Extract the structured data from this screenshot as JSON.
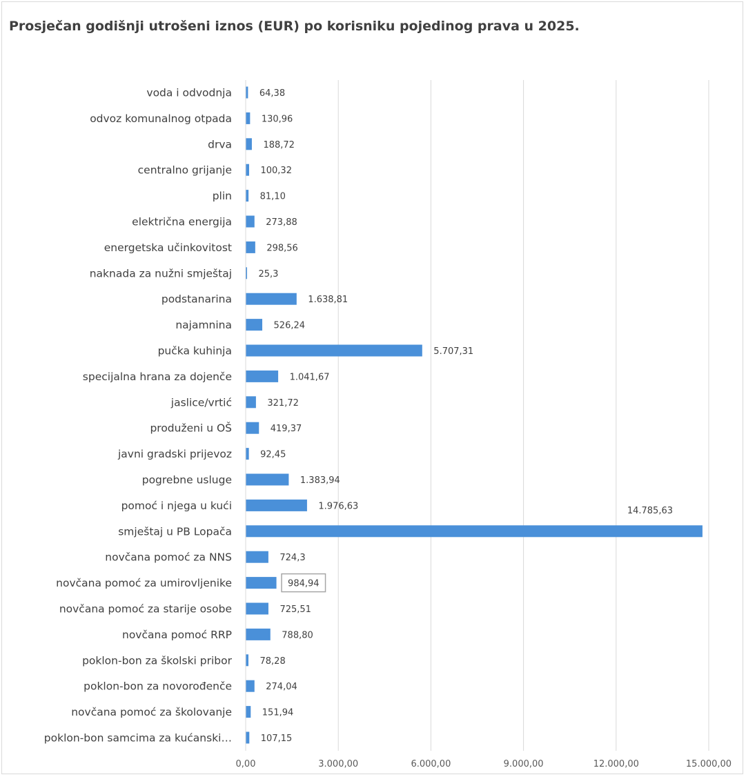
{
  "chart_data": {
    "type": "bar",
    "orientation": "horizontal",
    "title": "Prosječan godišnji utrošeni iznos (EUR) po korisniku pojedinog prava u 2025.",
    "xlabel": "",
    "ylabel": "",
    "xlim": [
      0,
      15000
    ],
    "grid": true,
    "legend": "none",
    "bar_color": "#4a90d9",
    "x_ticks": [
      "0,00",
      "3.000,00",
      "6.000,00",
      "9.000,00",
      "12.000,00",
      "15.000,00"
    ],
    "categories": [
      "voda i odvodnja",
      "odvoz komunalnog otpada",
      "drva",
      "centralno grijanje",
      "plin",
      "električna energija",
      "energetska učinkovitost",
      "naknada za nužni smještaj",
      "podstanarina",
      "najamnina",
      "pučka kuhinja",
      "specijalna hrana za dojenče",
      "jaslice/vrtić",
      "produženi u OŠ",
      "javni gradski prijevoz",
      "pogrebne usluge",
      "pomoć i njega u kući",
      "smještaj u PB Lopača",
      "novčana pomoć za NNS",
      "novčana pomoć za umirovljenike",
      "novčana pomoć za starije osobe",
      "novčana pomoć RRP",
      "poklon-bon za školski pribor",
      "poklon-bon za novorođenče",
      "novčana pomoć za školovanje",
      "poklon-bon samcima za kućanski…"
    ],
    "values": [
      64.38,
      130.96,
      188.72,
      100.32,
      81.1,
      273.88,
      298.56,
      25.3,
      1638.81,
      526.24,
      5707.31,
      1041.67,
      321.72,
      419.37,
      92.45,
      1383.94,
      1976.63,
      14785.63,
      724.3,
      984.94,
      725.51,
      788.8,
      78.28,
      274.04,
      151.94,
      107.15
    ],
    "value_labels": [
      "64,38",
      "130,96",
      "188,72",
      "100,32",
      "81,10",
      "273,88",
      "298,56",
      "25,3",
      "1.638,81",
      "526,24",
      "5.707,31",
      "1.041,67",
      "321,72",
      "419,37",
      "92,45",
      "1.383,94",
      "1.976,63",
      "14.785,63",
      "724,3",
      "984,94",
      "725,51",
      "788,80",
      "78,28",
      "274,04",
      "151,94",
      "107,15"
    ],
    "boxed_label_index": 19
  }
}
